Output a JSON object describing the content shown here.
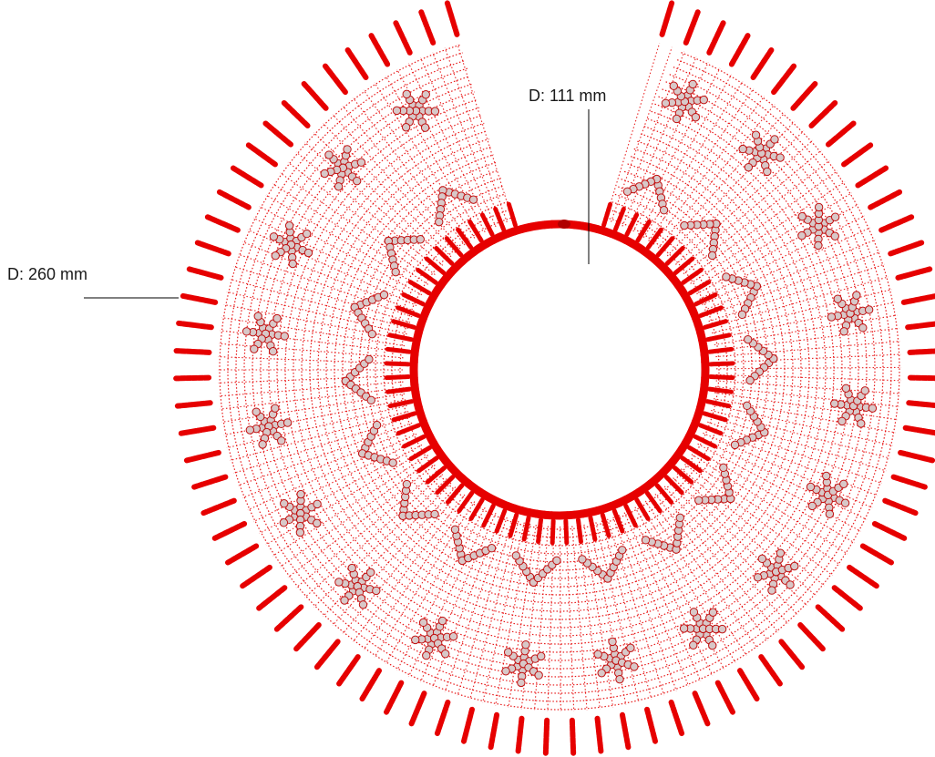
{
  "diagram": {
    "outer_diameter_label": "D: 260 mm",
    "inner_diameter_label": "D: 111 mm",
    "colors": {
      "bead": "#e60000",
      "bead_dark": "#b00000",
      "motif_bead": "#d8c8c8",
      "motif_stroke": "#c01010",
      "leader_line": "#000000",
      "background": "#ffffff"
    },
    "collar": {
      "outer_diameter_mm": 260,
      "inner_diameter_mm": 111,
      "fringe_strands": 80,
      "open_segment": "top"
    }
  }
}
